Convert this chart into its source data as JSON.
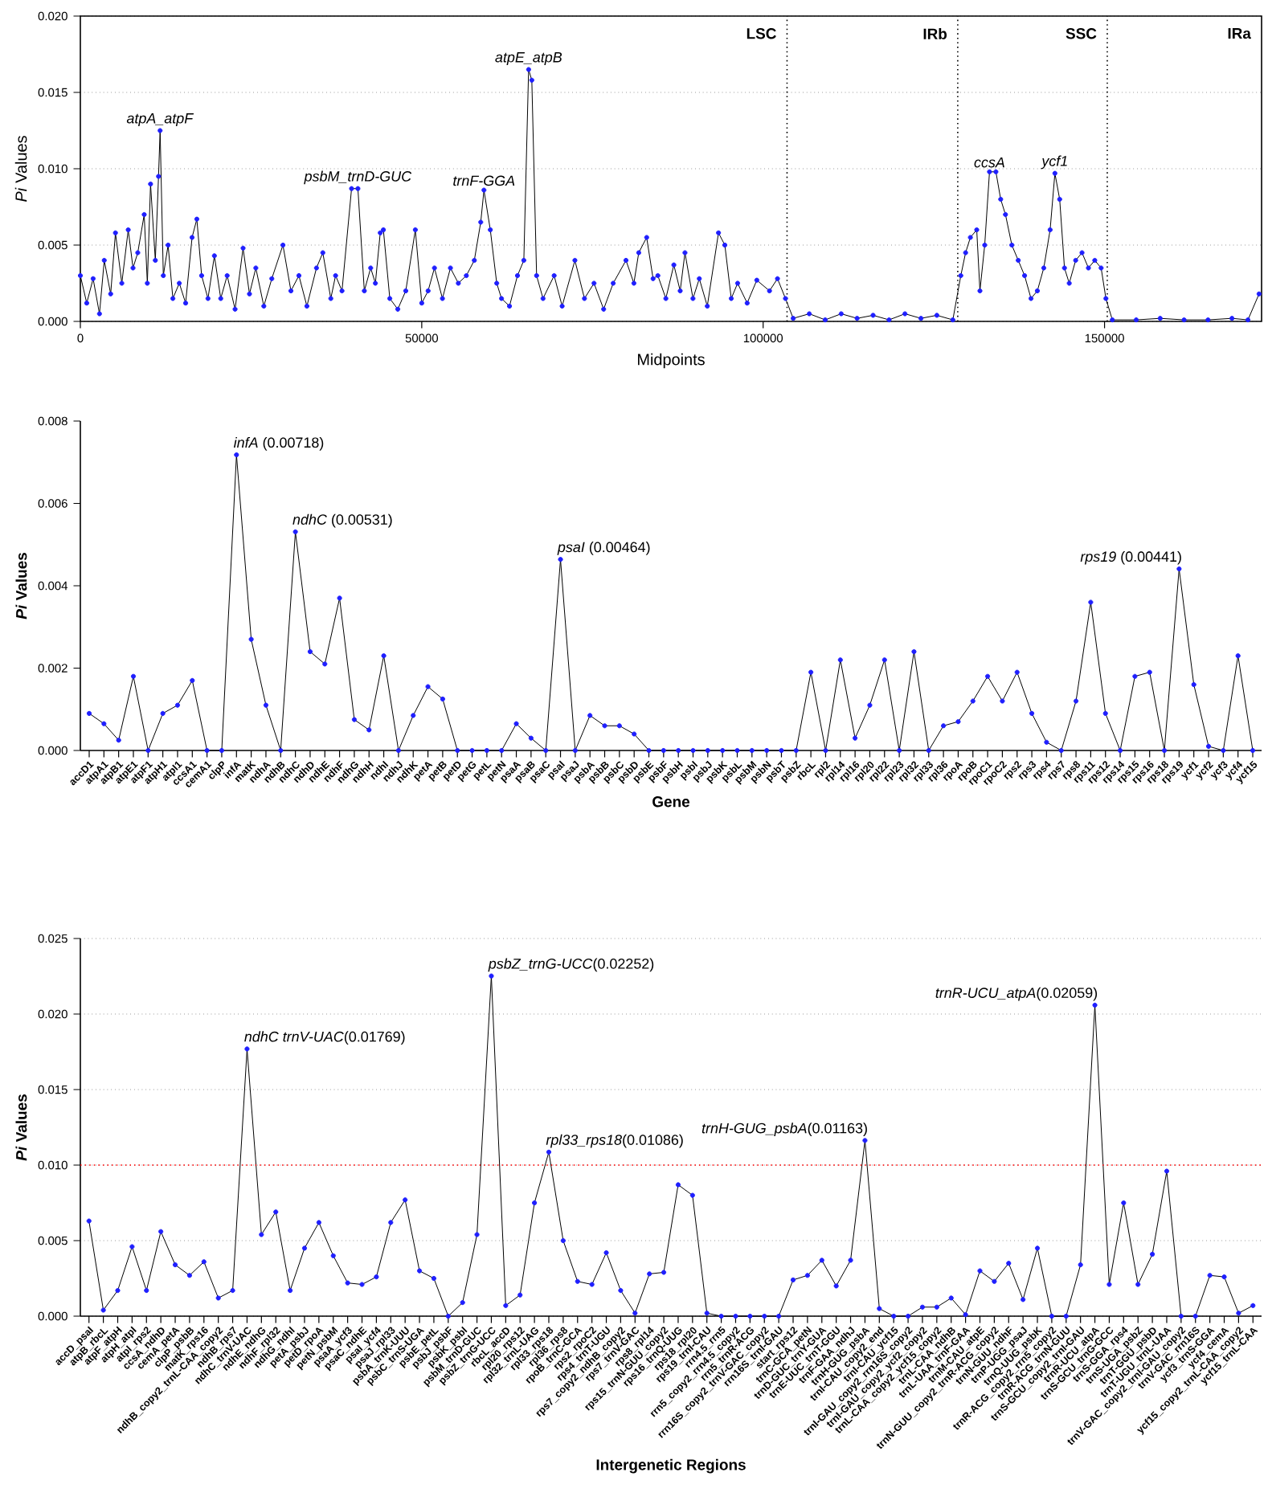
{
  "chart_data": [
    {
      "type": "line",
      "xlabel": "Midpoints",
      "ylabel": "*Pi* Values",
      "color": "#1f1fff",
      "marker": "circle",
      "line_style": "solid",
      "grid": "y",
      "xlim": [
        0,
        173000
      ],
      "xticks": [
        0,
        50000,
        100000,
        150000
      ],
      "ylim": [
        0,
        0.02
      ],
      "yticks": [
        {
          "value": 0,
          "label": "0.000"
        },
        {
          "value": 0.005,
          "label": "0.005"
        },
        {
          "value": 0.01,
          "label": "0.010"
        },
        {
          "value": 0.015,
          "label": "0.015"
        },
        {
          "value": 0.02,
          "label": "0.020"
        }
      ],
      "x": [
        0,
        935,
        1870,
        2800,
        3500,
        4440,
        5140,
        6070,
        7010,
        7710,
        8410,
        9350,
        9810,
        10280,
        10980,
        11450,
        11680,
        12150,
        12850,
        13550,
        14490,
        15420,
        16360,
        17060,
        17760,
        18690,
        19630,
        20560,
        21500,
        22660,
        23830,
        24770,
        25700,
        26870,
        28040,
        29670,
        30840,
        32010,
        33180,
        34580,
        35510,
        36680,
        37380,
        38320,
        39720,
        40650,
        41590,
        42520,
        43210,
        43920,
        44380,
        45320,
        46490,
        47660,
        49060,
        50000,
        50930,
        51860,
        53030,
        54200,
        55360,
        56530,
        57700,
        58640,
        59110,
        60040,
        60980,
        61680,
        62850,
        64020,
        64950,
        65650,
        66120,
        66820,
        67760,
        69390,
        70560,
        72430,
        73830,
        75230,
        76640,
        78040,
        79910,
        81070,
        81780,
        82940,
        83880,
        84580,
        85750,
        86920,
        87850,
        88550,
        89720,
        90650,
        91820,
        93460,
        94390,
        95330,
        96260,
        97660,
        99070,
        100930,
        102100,
        103270,
        104400,
        106760,
        109090,
        111430,
        113760,
        116100,
        118440,
        120770,
        123110,
        125440,
        127780,
        128950,
        129650,
        130350,
        131280,
        131750,
        132450,
        133150,
        134090,
        134790,
        135490,
        136420,
        137360,
        138290,
        139230,
        140160,
        141100,
        142030,
        142730,
        143430,
        144130,
        144830,
        145770,
        146700,
        147640,
        148570,
        149500,
        150200,
        151140,
        154640,
        158150,
        161650,
        165150,
        168660,
        171000,
        172630
      ],
      "values": [
        0.003,
        0.0012,
        0.0028,
        0.0005,
        0.004,
        0.0018,
        0.0058,
        0.0025,
        0.006,
        0.0035,
        0.0045,
        0.007,
        0.0025,
        0.009,
        0.004,
        0.0095,
        0.0125,
        0.003,
        0.005,
        0.0015,
        0.0025,
        0.0012,
        0.0055,
        0.0067,
        0.003,
        0.0015,
        0.0043,
        0.0015,
        0.003,
        0.0008,
        0.0048,
        0.0018,
        0.0035,
        0.001,
        0.0028,
        0.005,
        0.002,
        0.003,
        0.001,
        0.0035,
        0.0045,
        0.0015,
        0.003,
        0.002,
        0.0087,
        0.0087,
        0.002,
        0.0035,
        0.0025,
        0.0058,
        0.006,
        0.0015,
        0.0008,
        0.002,
        0.006,
        0.0012,
        0.002,
        0.0035,
        0.0015,
        0.0035,
        0.0025,
        0.003,
        0.004,
        0.0065,
        0.0086,
        0.006,
        0.0025,
        0.0015,
        0.001,
        0.003,
        0.004,
        0.0165,
        0.0158,
        0.003,
        0.0015,
        0.003,
        0.001,
        0.004,
        0.0015,
        0.0025,
        0.0008,
        0.0025,
        0.004,
        0.0025,
        0.0045,
        0.0055,
        0.0028,
        0.003,
        0.0015,
        0.0037,
        0.002,
        0.0045,
        0.0015,
        0.0028,
        0.001,
        0.0058,
        0.005,
        0.0015,
        0.0025,
        0.0012,
        0.0027,
        0.002,
        0.0028,
        0.0015,
        0.0002,
        0.0005,
        0.0001,
        0.0005,
        0.0002,
        0.0004,
        0.0001,
        0.0005,
        0.0002,
        0.0004,
        0.0001,
        0.003,
        0.0045,
        0.0055,
        0.006,
        0.002,
        0.005,
        0.0098,
        0.0098,
        0.008,
        0.007,
        0.005,
        0.004,
        0.003,
        0.0015,
        0.002,
        0.0035,
        0.006,
        0.0097,
        0.008,
        0.0035,
        0.0025,
        0.004,
        0.0045,
        0.0035,
        0.004,
        0.0035,
        0.0015,
        0.0001,
        0.0001,
        0.0002,
        0.0001,
        0.0001,
        0.0002,
        0.0001,
        0.0018
      ],
      "ref_lines": [
        {
          "axis": "x",
          "value": 103500,
          "color": "#000000",
          "line_style": "dotted"
        },
        {
          "axis": "x",
          "value": 128500,
          "color": "#000000",
          "line_style": "dotted"
        },
        {
          "axis": "x",
          "value": 150400,
          "color": "#000000",
          "line_style": "dotted"
        }
      ],
      "annotations": [
        {
          "text": "*atpA_atpF*",
          "x": 11680,
          "y": 0.0125
        },
        {
          "text": "*psbM_trnD-GUC*",
          "x": 40650,
          "y": 0.0087
        },
        {
          "text": "*trnF-GGA*",
          "x": 59110,
          "y": 0.0086
        },
        {
          "text": "*atpE_atpB*",
          "x": 65650,
          "y": 0.0165
        },
        {
          "text": "*ccsA*",
          "x": 133150,
          "y": 0.0098
        },
        {
          "text": "*ycf1*",
          "x": 142730,
          "y": 0.0097
        },
        "**LSC**",
        "**IRb**",
        "**SSC**",
        "**IRa**"
      ]
    },
    {
      "type": "line",
      "xlabel": "Gene",
      "ylabel": "*Pi* Values",
      "color": "#1f1fff",
      "marker": "circle",
      "line_style": "solid",
      "ylim": [
        0,
        0.008
      ],
      "yticks": [
        {
          "value": 0,
          "label": "0.000"
        },
        {
          "value": 0.002,
          "label": "0.002"
        },
        {
          "value": 0.004,
          "label": "0.004"
        },
        {
          "value": 0.006,
          "label": "0.006"
        },
        {
          "value": 0.008,
          "label": "0.008"
        }
      ],
      "categories": [
        "accD1",
        "atpA1",
        "atpB1",
        "atpE1",
        "atpF1",
        "atpH1",
        "atpI1",
        "ccsA1",
        "cemA1",
        "clpP",
        "infA",
        "matK",
        "ndhA",
        "ndhB",
        "ndhC",
        "ndhD",
        "ndhE",
        "ndhF",
        "ndhG",
        "ndhH",
        "ndhI",
        "ndhJ",
        "ndhK",
        "petA",
        "petB",
        "petD",
        "petG",
        "petL",
        "petN",
        "psaA",
        "psaB",
        "psaC",
        "psaI",
        "psaJ",
        "psbA",
        "psbB",
        "psbC",
        "psbD",
        "psbE",
        "psbF",
        "psbH",
        "psbI",
        "psbJ",
        "psbK",
        "psbL",
        "psbM",
        "psbN",
        "psbT",
        "psbZ",
        "rbcL",
        "rpl2",
        "rpl14",
        "rpl16",
        "rpl20",
        "rpl22",
        "rpl23",
        "rpl32",
        "rpl33",
        "rpl36",
        "rpoA",
        "rpoB",
        "rpoC1",
        "rpoC2",
        "rps2",
        "rps3",
        "rps4",
        "rps7",
        "rps8",
        "rps11",
        "rps12",
        "rps14",
        "rps15",
        "rps16",
        "rps18",
        "rps19",
        "ycf1",
        "ycf2",
        "ycf3",
        "ycf4",
        "ycf15"
      ],
      "values": [
        0.0009,
        0.00065,
        0.00025,
        0.0018,
        0,
        0.0009,
        0.0011,
        0.0017,
        0,
        0,
        0.00718,
        0.0027,
        0.0011,
        0,
        0.00531,
        0.0024,
        0.0021,
        0.0037,
        0.00075,
        0.0005,
        0.0023,
        0,
        0.00085,
        0.00155,
        0.00125,
        0,
        0,
        0,
        0,
        0.00065,
        0.0003,
        0,
        0.00464,
        0,
        0.00085,
        0.0006,
        0.0006,
        0.0004,
        0,
        0,
        0,
        0,
        0,
        0,
        0,
        0,
        0,
        0,
        0,
        0.0019,
        0,
        0.0022,
        0.0003,
        0.0011,
        0.0022,
        0,
        0.0024,
        0,
        0.0006,
        0.0007,
        0.0012,
        0.0018,
        0.0012,
        0.0019,
        0.0009,
        0.0002,
        0,
        0.0012,
        0.0036,
        0.0009,
        0,
        0.0018,
        0.0019,
        0,
        0.00441,
        0.0016,
        0.0001,
        0,
        0.0023,
        0
      ],
      "annotations": [
        {
          "text": "*infA* (0.00718)",
          "x": "infA",
          "y": 0.00718
        },
        {
          "text": "*ndhC* (0.00531)",
          "x": "ndhC",
          "y": 0.00531
        },
        {
          "text": "*psaI* (0.00464)",
          "x": "psaI",
          "y": 0.00464
        },
        {
          "text": "*rps19* (0.00441)",
          "x": "rps19",
          "y": 0.00441
        }
      ]
    },
    {
      "type": "line",
      "xlabel": "Intergenetic Regions",
      "ylabel": "*Pi* Values",
      "color": "#1f1fff",
      "marker": "circle",
      "line_style": "solid",
      "grid": "y",
      "ylim": [
        0,
        0.025
      ],
      "yticks": [
        {
          "value": 0,
          "label": "0.000"
        },
        {
          "value": 0.005,
          "label": "0.005"
        },
        {
          "value": 0.01,
          "label": "0.010"
        },
        {
          "value": 0.015,
          "label": "0.015"
        },
        {
          "value": 0.02,
          "label": "0.020"
        },
        {
          "value": 0.025,
          "label": "0.025"
        }
      ],
      "categories": [
        "accD_psaI",
        "atpB_rbcL",
        "atpF_atpH",
        "atpH_atpI",
        "atpI_rps2",
        "ccsA_ndhD",
        "cemA_petA",
        "clpP_psbB",
        "matK_rps16",
        "ndhB_copy2_trnL-CAA_copy2",
        "ndhB_rps7",
        "ndhC_trnV-UAC",
        "ndhE_ndhG",
        "ndhF_rpl32",
        "ndhG_ndhI",
        "petA_psbJ",
        "petD_rpoA",
        "petN_psbM",
        "psaA_ycf3",
        "psaC_ndhE",
        "psaI_ycf4",
        "psaJ_rpl33",
        "psbA_trnK-UUU",
        "psbC_trnS-UGA",
        "psbE_petL",
        "psbJ_psbF",
        "psbK_psbI",
        "psbM_trnD-GUC",
        "psbZ_trnG-UCC",
        "rbcL_accD",
        "rpl20_rps12",
        "rpl32_trnL-UAG",
        "rpl33_rps18",
        "rpl36_rps8",
        "rpoB_trnC-GCA",
        "rps2_rpoC2",
        "rps4_trnT-UGU",
        "rps7_copy2_ndhB_copy2",
        "rps7_trnV-GAC",
        "rps8_rpl14",
        "rps15_trnN-GUU_copy2",
        "rps16_trnQ-UUG",
        "rps18_rpl20",
        "rps19_trnI-CAU",
        "rrn4.5_rrn5",
        "rrn5_copy2_rrn4.5_copy2",
        "rrn5_trnR-ACG",
        "rrn16S_copy2_trnV-GAC_copy2",
        "rrn16S_trnI-GAU",
        "start_rps12",
        "trnC-GCA_petN",
        "trnD-GUC_trnY-GUA",
        "trnE-UUC_trnT-GGU",
        "trnF-GAA_ndhJ",
        "trnH-GUG_psbA",
        "trnI-CAU_copy2_end",
        "trnI-CAU_ycf15",
        "trnI-GAU_copy2_rrn16S_copy2",
        "trnI-GAU_copy2_ycf2_copy2",
        "trnL-CAA_copy2_ycf15_copy2",
        "trnL-CAA_ndhB",
        "trnL-UAA_trnF-GAA",
        "trnM-CAU_atpE",
        "trnN-GUU_copy2_trnR-ACG_copy2",
        "trnN-GUU_ndhF",
        "trnP-UGG_psaJ",
        "trnQ-UUG_psbK",
        "trnR-ACG_copy2_rrn5_copy2",
        "trnR-ACG_trnN-GUU",
        "trnS-GCU_copy2_trnI-GAU",
        "trnR-UCU_atpA",
        "trnS-GCU_trnG-GCC",
        "trnS-GGA_rps4",
        "trnS-UGA_psbZ",
        "trnT-GGU_psbD",
        "trnT-UGU_trnL-UAA",
        "trnV-GAC_copy2_trnI-GAU_copy2",
        "trnV-GAC_rrn16S",
        "ycf3_trnS-GGA",
        "ycf4_cemA",
        "ycf15_copy2_trnL-CAA_copy2",
        "ycf15_trnL-CAA"
      ],
      "values": [
        0.0063,
        0.0004,
        0.0017,
        0.0046,
        0.0017,
        0.0056,
        0.0034,
        0.0027,
        0.0036,
        0.0012,
        0.0017,
        0.01769,
        0.0054,
        0.0069,
        0.0017,
        0.0045,
        0.0062,
        0.004,
        0.0022,
        0.0021,
        0.0026,
        0.0062,
        0.0077,
        0.003,
        0.0025,
        0,
        0.0009,
        0.0054,
        0.02252,
        0.0007,
        0.0014,
        0.0075,
        0.01086,
        0.005,
        0.0023,
        0.0021,
        0.0042,
        0.0017,
        0.0002,
        0.0028,
        0.0029,
        0.0087,
        0.008,
        0.0002,
        0,
        0,
        0,
        0,
        0,
        0.0024,
        0.0027,
        0.0037,
        0.002,
        0.0037,
        0.01163,
        0.0005,
        0,
        0,
        0.0006,
        0.0006,
        0.0012,
        0.0001,
        0.003,
        0.0023,
        0.0035,
        0.0011,
        0.0045,
        0,
        0,
        0.0034,
        0.02059,
        0.0021,
        0.0075,
        0.0021,
        0.0041,
        0.0096,
        0,
        0,
        0.0027,
        0.0026,
        0.0002,
        0.0007
      ],
      "ref_lines": [
        {
          "axis": "y",
          "value": 0.01,
          "color": "#ff0000",
          "line_style": "dotted"
        }
      ],
      "annotations": [
        {
          "text": "*ndhC trnV-UAC*(0.01769)",
          "x": "ndhC_trnV-UAC",
          "y": 0.01769
        },
        {
          "text": "*psbZ_trnG-UCC*(0.02252)",
          "x": "psbZ_trnG-UCC",
          "y": 0.02252
        },
        {
          "text": "*rpl33_rps18*(0.01086)",
          "x": "rpl33_rps18",
          "y": 0.01086
        },
        {
          "text": "*trnH-GUG_psbA*(0.01163)",
          "x": "trnH-GUG_psbA",
          "y": 0.01163
        },
        {
          "text": "*trnR-UCU_atpA*(0.02059)",
          "x": "trnR-UCU_atpA",
          "y": 0.02059
        }
      ]
    }
  ]
}
